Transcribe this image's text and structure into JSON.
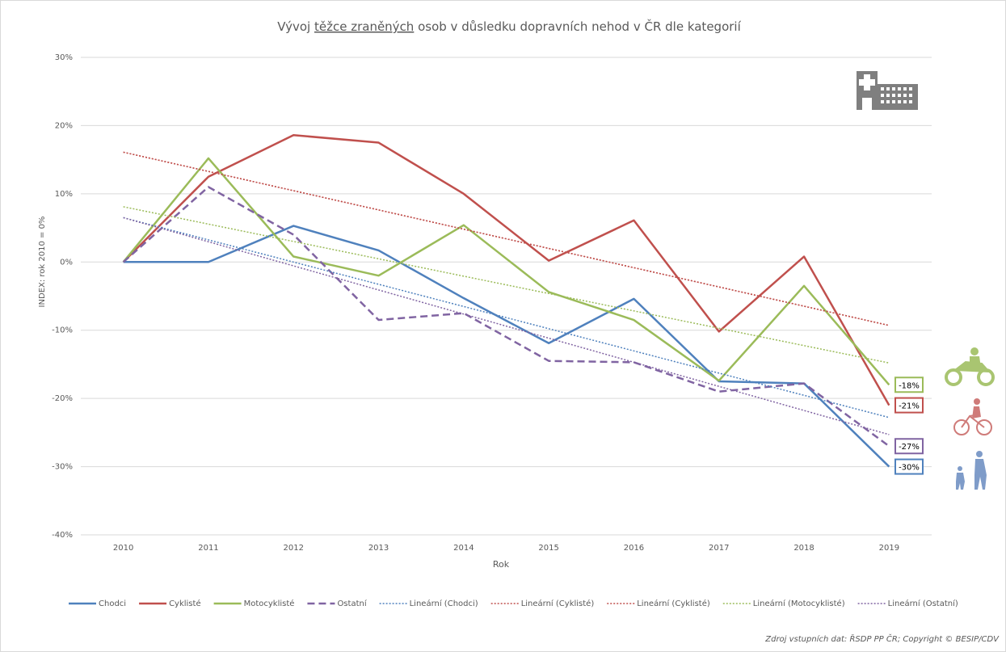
{
  "chart_data": {
    "type": "line",
    "title_parts": [
      "Vývoj ",
      "těžce zraněných",
      " osob v důsledku dopravních nehod v ČR dle kategorií"
    ],
    "x_label": "Rok",
    "y_label": "INDEX: rok 2010 = 0%",
    "source": "Zdroj vstupních dat: ŘSDP PP ČR; Copyright © BESIP/CDV",
    "x": [
      2010,
      2011,
      2012,
      2013,
      2014,
      2015,
      2016,
      2017,
      2018,
      2019
    ],
    "xlim": [
      2009.5,
      2019.5
    ],
    "xticks": [
      2010,
      2011,
      2012,
      2013,
      2014,
      2015,
      2016,
      2017,
      2018,
      2019
    ],
    "ylim": [
      -40,
      30
    ],
    "yticks": [
      {
        "value": -40,
        "label": "-40%"
      },
      {
        "value": -30,
        "label": "-30%"
      },
      {
        "value": -20,
        "label": "-20%"
      },
      {
        "value": -10,
        "label": "-10%"
      },
      {
        "value": 0,
        "label": "0%"
      },
      {
        "value": 10,
        "label": "10%"
      },
      {
        "value": 20,
        "label": "20%"
      },
      {
        "value": 30,
        "label": "30%"
      }
    ],
    "grid": true,
    "series": [
      {
        "name": "Chodci",
        "color": "#4f81bd",
        "style": "solid",
        "values": [
          0,
          0,
          5.3,
          1.7,
          -5.3,
          -11.9,
          -5.4,
          -17.5,
          -17.8,
          -30
        ],
        "value_labels": [
          null,
          null,
          null,
          null,
          null,
          null,
          null,
          null,
          null,
          "-30%"
        ]
      },
      {
        "name": "Cyklisté",
        "color": "#c0504d",
        "style": "solid",
        "values": [
          0,
          12.5,
          18.6,
          17.5,
          10,
          0.2,
          6.1,
          -10.2,
          0.8,
          -21
        ],
        "value_labels": [
          null,
          null,
          null,
          null,
          null,
          null,
          null,
          null,
          null,
          "-21%"
        ]
      },
      {
        "name": "Motocyklisté",
        "color": "#9bbb59",
        "style": "solid",
        "values": [
          0,
          15.2,
          0.8,
          -2,
          5.4,
          -4.4,
          -8.5,
          -17.4,
          -3.5,
          -18
        ],
        "value_labels": [
          null,
          null,
          null,
          null,
          null,
          null,
          null,
          null,
          null,
          "-18%"
        ]
      },
      {
        "name": "Ostatní",
        "color": "#8064a2",
        "style": "dashed",
        "values": [
          0,
          11,
          4,
          -8.5,
          -7.5,
          -14.5,
          -14.7,
          -19,
          -17.8,
          -27
        ],
        "value_labels": [
          null,
          null,
          null,
          null,
          null,
          null,
          null,
          null,
          null,
          "-27%"
        ]
      },
      {
        "name": "Lineární (Chodci)",
        "color": "#4f81bd",
        "style": "dotted",
        "x": [
          2010,
          2019
        ],
        "values": [
          6.5,
          -22.8
        ]
      },
      {
        "name": "Lineární (Cyklisté)",
        "color": "#c0504d",
        "style": "dotted",
        "x": [
          2010,
          2019
        ],
        "values": [
          16.1,
          -9.3
        ]
      },
      {
        "name": "Lineární (Cyklisté)",
        "color": "#c0504d",
        "style": "dotted",
        "x": [
          2010,
          2019
        ],
        "values": [
          16.1,
          -9.3
        ]
      },
      {
        "name": "Lineární (Motocyklisté)",
        "color": "#9bbb59",
        "style": "dotted",
        "x": [
          2010,
          2019
        ],
        "values": [
          8.1,
          -14.8
        ]
      },
      {
        "name": "Lineární (Ostatní)",
        "color": "#8064a2",
        "style": "dotted",
        "x": [
          2010,
          2019
        ],
        "values": [
          6.5,
          -25.3
        ]
      }
    ]
  }
}
